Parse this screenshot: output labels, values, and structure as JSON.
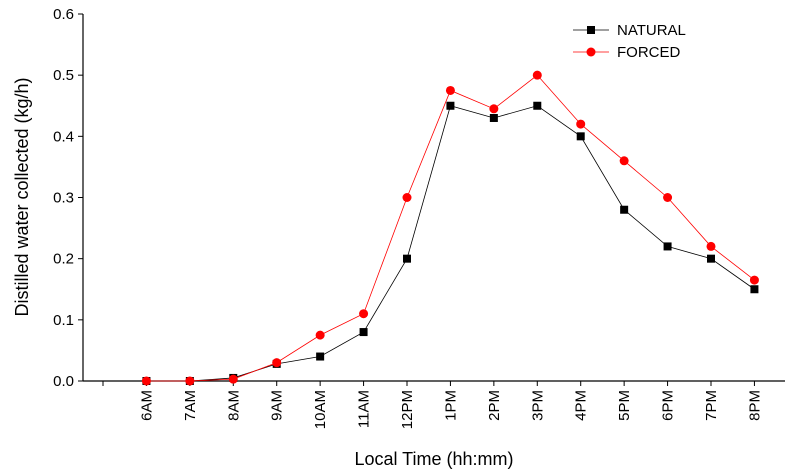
{
  "chart_data": {
    "type": "line",
    "x_label": "Local Time (hh:mm)",
    "y_label": "Distilled water collected  (kg/h)",
    "categories": [
      null,
      "6AM",
      "7AM",
      "8AM",
      "9AM",
      "10AM",
      "11AM",
      "12PM",
      "1PM",
      "2PM",
      "3PM",
      "4PM",
      "5PM",
      "6PM",
      "7PM",
      "8PM"
    ],
    "series": [
      {
        "name": "NATURAL",
        "color": "#000000",
        "marker": "square",
        "values": [
          null,
          0,
          0,
          0.005,
          0.028,
          0.04,
          0.08,
          0.2,
          0.45,
          0.43,
          0.45,
          0.4,
          0.28,
          0.22,
          0.2,
          0.15
        ]
      },
      {
        "name": "FORCED",
        "color": "#ff0000",
        "marker": "circle",
        "values": [
          null,
          0,
          0,
          0.003,
          0.03,
          0.075,
          0.11,
          0.3,
          0.475,
          0.445,
          0.5,
          0.42,
          0.36,
          0.3,
          0.22,
          0.165
        ]
      }
    ],
    "ylim": [
      0,
      0.6
    ],
    "yticks": [
      {
        "value": 0,
        "label": "0.0"
      },
      0.1,
      0.2,
      0.3,
      0.4,
      0.5,
      0.6
    ],
    "grid": false,
    "legend": "upper right"
  }
}
